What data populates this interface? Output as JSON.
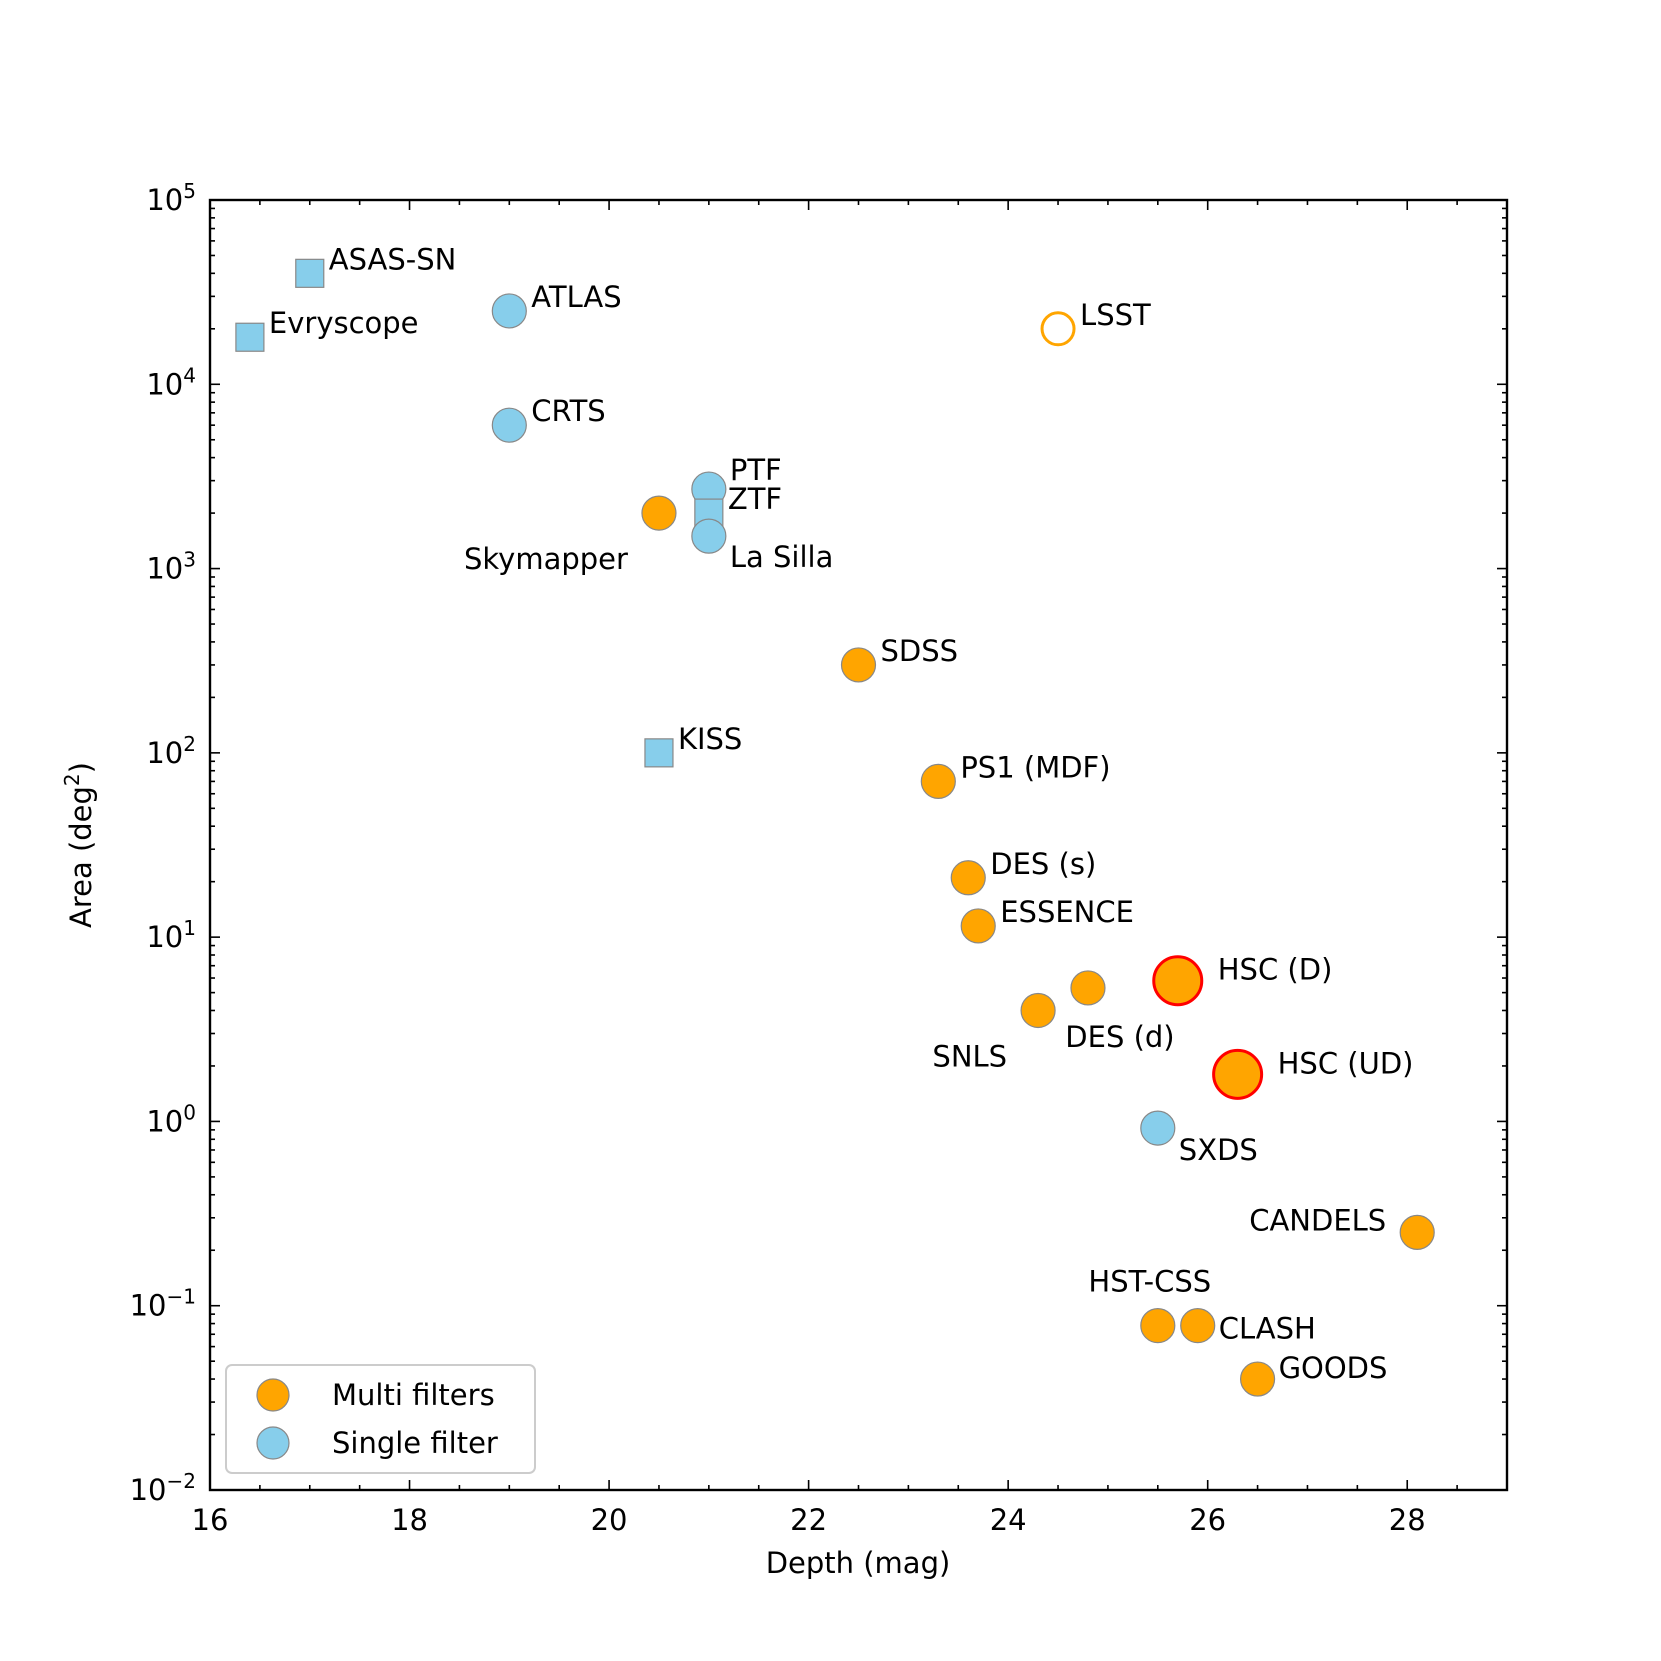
{
  "chart_data": {
    "type": "scatter",
    "xlabel": "Depth (mag)",
    "ylabel": "Area (deg",
    "ylabel_sup": "2",
    "ylabel_suffix": ")",
    "xlim": [
      16,
      29
    ],
    "ylim": [
      0.01,
      100000
    ],
    "yscale": "log",
    "grid": false,
    "legend_position": "lower-left",
    "x_ticks": [
      {
        "value": 16,
        "label": "16"
      },
      {
        "value": 18,
        "label": "18"
      },
      {
        "value": 20,
        "label": "20"
      },
      {
        "value": 22,
        "label": "22"
      },
      {
        "value": 24,
        "label": "24"
      },
      {
        "value": 26,
        "label": "26"
      },
      {
        "value": 28,
        "label": "28"
      }
    ],
    "y_ticks": [
      {
        "value": 0.01,
        "base": "10",
        "exp": "−2"
      },
      {
        "value": 0.1,
        "base": "10",
        "exp": "−1"
      },
      {
        "value": 1,
        "base": "10",
        "exp": "0"
      },
      {
        "value": 10,
        "base": "10",
        "exp": "1"
      },
      {
        "value": 100,
        "base": "10",
        "exp": "2"
      },
      {
        "value": 1000,
        "base": "10",
        "exp": "3"
      },
      {
        "value": 10000,
        "base": "10",
        "exp": "4"
      },
      {
        "value": 100000,
        "base": "10",
        "exp": "5"
      }
    ],
    "legend": [
      {
        "label": "Multi filters",
        "color": "#FFA500"
      },
      {
        "label": "Single filter",
        "color": "#87CEEB"
      }
    ],
    "colors": {
      "multi": "#FFA500",
      "single": "#87CEEB",
      "edge": "#888888",
      "highlight_edge": "#FF0000",
      "highlight_text": "#FF0000"
    },
    "points": [
      {
        "name": "ASAS-SN",
        "x": 17.0,
        "y": 40000,
        "marker": "square",
        "filter": "single",
        "label_pos": "right"
      },
      {
        "name": "Evryscope",
        "x": 16.4,
        "y": 18000,
        "marker": "square",
        "filter": "single",
        "label_pos": "right"
      },
      {
        "name": "ATLAS",
        "x": 19.0,
        "y": 25000,
        "marker": "circle",
        "filter": "single",
        "label_pos": "right"
      },
      {
        "name": "CRTS",
        "x": 19.0,
        "y": 6000,
        "marker": "circle",
        "filter": "single",
        "label_pos": "right"
      },
      {
        "name": "LSST",
        "x": 24.5,
        "y": 20000,
        "marker": "circle-open",
        "filter": "multi",
        "label_pos": "right"
      },
      {
        "name": "PTF",
        "x": 21.0,
        "y": 2700,
        "marker": "circle",
        "filter": "single",
        "label_pos": "upper-right"
      },
      {
        "name": "ZTF",
        "x": 21.0,
        "y": 2000,
        "marker": "square",
        "filter": "single",
        "label_pos": "right"
      },
      {
        "name": "La Silla",
        "x": 21.0,
        "y": 1500,
        "marker": "circle",
        "filter": "single",
        "label_pos": "lower-right"
      },
      {
        "name": "Skymapper",
        "x": 20.5,
        "y": 2000,
        "marker": "circle",
        "filter": "multi",
        "label_pos": "lower-left"
      },
      {
        "name": "SDSS",
        "x": 22.5,
        "y": 300,
        "marker": "circle",
        "filter": "multi",
        "label_pos": "right"
      },
      {
        "name": "KISS",
        "x": 20.5,
        "y": 100,
        "marker": "square",
        "filter": "single",
        "label_pos": "right"
      },
      {
        "name": "PS1 (MDF)",
        "x": 23.3,
        "y": 70,
        "marker": "circle",
        "filter": "multi",
        "label_pos": "right"
      },
      {
        "name": "DES (s)",
        "x": 23.6,
        "y": 21,
        "marker": "circle",
        "filter": "multi",
        "label_pos": "right"
      },
      {
        "name": "ESSENCE",
        "x": 23.7,
        "y": 11.5,
        "marker": "circle",
        "filter": "multi",
        "label_pos": "right"
      },
      {
        "name": "HSC (D)",
        "x": 25.7,
        "y": 5.8,
        "marker": "circle-large",
        "filter": "multi",
        "highlight": true,
        "label_pos": "right"
      },
      {
        "name": "DES (d)",
        "x": 24.8,
        "y": 5.3,
        "marker": "circle",
        "filter": "multi",
        "label_pos": "below"
      },
      {
        "name": "SNLS",
        "x": 24.3,
        "y": 4.0,
        "marker": "circle",
        "filter": "multi",
        "label_pos": "lower-left"
      },
      {
        "name": "HSC (UD)",
        "x": 26.3,
        "y": 1.8,
        "marker": "circle-large",
        "filter": "multi",
        "highlight": true,
        "label_pos": "right"
      },
      {
        "name": "SXDS",
        "x": 25.5,
        "y": 0.92,
        "marker": "circle",
        "filter": "single",
        "label_pos": "lower-right"
      },
      {
        "name": "CANDELS",
        "x": 28.1,
        "y": 0.25,
        "marker": "circle",
        "filter": "multi",
        "label_pos": "left"
      },
      {
        "name": "HST-CSS",
        "x": 25.5,
        "y": 0.078,
        "marker": "circle",
        "filter": "multi",
        "label_pos": "above"
      },
      {
        "name": "CLASH",
        "x": 25.9,
        "y": 0.078,
        "marker": "circle",
        "filter": "multi",
        "label_pos": "lower-right"
      },
      {
        "name": "GOODS",
        "x": 26.5,
        "y": 0.04,
        "marker": "circle",
        "filter": "multi",
        "label_pos": "upper-right"
      }
    ]
  }
}
